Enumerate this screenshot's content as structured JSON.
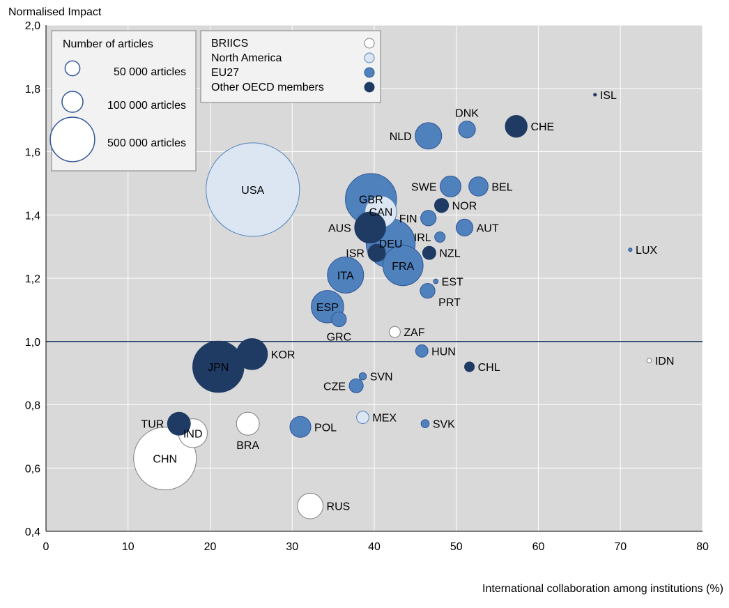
{
  "chart_data": {
    "type": "scatter",
    "xlabel": "International collaboration among institutions (%)",
    "ylabel": "Normalised Impact",
    "xlim": [
      0,
      80
    ],
    "ylim": [
      0.4,
      2.0
    ],
    "x_ticks": [
      "0",
      "10",
      "20",
      "30",
      "40",
      "50",
      "60",
      "70",
      "80"
    ],
    "y_ticks": [
      "0,4",
      "0,6",
      "0,8",
      "1,0",
      "1,2",
      "1,4",
      "1,6",
      "1,8",
      "2,0"
    ],
    "grid": true,
    "reference_line_y": 1.0,
    "size_legend": {
      "title": "Number of articles",
      "items": [
        {
          "label": "50 000 articles",
          "articles": 50000
        },
        {
          "label": "100 000 articles",
          "articles": 100000
        },
        {
          "label": "500 000 articles",
          "articles": 500000
        }
      ]
    },
    "group_legend": [
      {
        "name": "BRIICS",
        "color": "#ffffff"
      },
      {
        "name": "North America",
        "color": "#dce6f2"
      },
      {
        "name": "EU27",
        "color": "#4f81bd"
      },
      {
        "name": "Other OECD members",
        "color": "#1f3b64"
      }
    ],
    "series": [
      {
        "label": "USA",
        "group": "North America",
        "x": 25.2,
        "y": 1.48,
        "articles": 2000000
      },
      {
        "label": "CAN",
        "group": "North America",
        "x": 40.8,
        "y": 1.41,
        "articles": 230000
      },
      {
        "label": "MEX",
        "group": "North America",
        "x": 38.6,
        "y": 0.76,
        "articles": 35000
      },
      {
        "label": "CHN",
        "group": "BRIICS",
        "x": 14.5,
        "y": 0.63,
        "articles": 900000
      },
      {
        "label": "IND",
        "group": "BRIICS",
        "x": 17.9,
        "y": 0.71,
        "articles": 190000
      },
      {
        "label": "BRA",
        "group": "BRIICS",
        "x": 24.6,
        "y": 0.74,
        "articles": 120000
      },
      {
        "label": "RUS",
        "group": "BRIICS",
        "x": 32.2,
        "y": 0.48,
        "articles": 150000
      },
      {
        "label": "ZAF",
        "group": "BRIICS",
        "x": 42.5,
        "y": 1.03,
        "articles": 28000
      },
      {
        "label": "IDN",
        "group": "BRIICS",
        "x": 73.5,
        "y": 0.94,
        "articles": 5000
      },
      {
        "label": "GBR",
        "group": "EU27",
        "x": 39.6,
        "y": 1.45,
        "articles": 600000
      },
      {
        "label": "DEU",
        "group": "EU27",
        "x": 42.0,
        "y": 1.31,
        "articles": 550000
      },
      {
        "label": "FRA",
        "group": "EU27",
        "x": 43.5,
        "y": 1.24,
        "articles": 370000
      },
      {
        "label": "ITA",
        "group": "EU27",
        "x": 36.5,
        "y": 1.21,
        "articles": 300000
      },
      {
        "label": "ESP",
        "group": "EU27",
        "x": 34.3,
        "y": 1.11,
        "articles": 240000
      },
      {
        "label": "NLD",
        "group": "EU27",
        "x": 46.6,
        "y": 1.65,
        "articles": 160000
      },
      {
        "label": "SWE",
        "group": "EU27",
        "x": 49.3,
        "y": 1.49,
        "articles": 100000
      },
      {
        "label": "DNK",
        "group": "EU27",
        "x": 51.3,
        "y": 1.67,
        "articles": 65000
      },
      {
        "label": "BEL",
        "group": "EU27",
        "x": 52.7,
        "y": 1.49,
        "articles": 85000
      },
      {
        "label": "FIN",
        "group": "EU27",
        "x": 46.6,
        "y": 1.39,
        "articles": 55000
      },
      {
        "label": "AUT",
        "group": "EU27",
        "x": 51.0,
        "y": 1.36,
        "articles": 65000
      },
      {
        "label": "IRL",
        "group": "EU27",
        "x": 48.0,
        "y": 1.33,
        "articles": 25000
      },
      {
        "label": "EST",
        "group": "EU27",
        "x": 47.5,
        "y": 1.19,
        "articles": 5000
      },
      {
        "label": "PRT",
        "group": "EU27",
        "x": 46.5,
        "y": 1.16,
        "articles": 50000
      },
      {
        "label": "GRC",
        "group": "EU27",
        "x": 35.7,
        "y": 1.07,
        "articles": 50000
      },
      {
        "label": "HUN",
        "group": "EU27",
        "x": 45.8,
        "y": 0.97,
        "articles": 35000
      },
      {
        "label": "CZE",
        "group": "EU27",
        "x": 37.8,
        "y": 0.86,
        "articles": 45000
      },
      {
        "label": "SVN",
        "group": "EU27",
        "x": 38.6,
        "y": 0.89,
        "articles": 12000
      },
      {
        "label": "POL",
        "group": "EU27",
        "x": 31.0,
        "y": 0.73,
        "articles": 100000
      },
      {
        "label": "SVK",
        "group": "EU27",
        "x": 46.2,
        "y": 0.74,
        "articles": 15000
      },
      {
        "label": "LUX",
        "group": "EU27",
        "x": 71.2,
        "y": 1.29,
        "articles": 3000
      },
      {
        "label": "CHE",
        "group": "Other OECD members",
        "x": 57.3,
        "y": 1.68,
        "articles": 110000
      },
      {
        "label": "NOR",
        "group": "Other OECD members",
        "x": 48.2,
        "y": 1.43,
        "articles": 45000
      },
      {
        "label": "NZL",
        "group": "Other OECD members",
        "x": 46.7,
        "y": 1.28,
        "articles": 40000
      },
      {
        "label": "ISR",
        "group": "Other OECD members",
        "x": 40.3,
        "y": 1.28,
        "articles": 70000
      },
      {
        "label": "AUS",
        "group": "Other OECD members",
        "x": 39.5,
        "y": 1.36,
        "articles": 220000
      },
      {
        "label": "ISL",
        "group": "Other OECD members",
        "x": 66.9,
        "y": 1.78,
        "articles": 2000
      },
      {
        "label": "KOR",
        "group": "Other OECD members",
        "x": 25.1,
        "y": 0.96,
        "articles": 220000
      },
      {
        "label": "JPN",
        "group": "Other OECD members",
        "x": 21.0,
        "y": 0.92,
        "articles": 600000
      },
      {
        "label": "TUR",
        "group": "Other OECD members",
        "x": 16.2,
        "y": 0.74,
        "articles": 120000
      },
      {
        "label": "CHL",
        "group": "Other OECD members",
        "x": 51.6,
        "y": 0.92,
        "articles": 22000
      }
    ]
  }
}
